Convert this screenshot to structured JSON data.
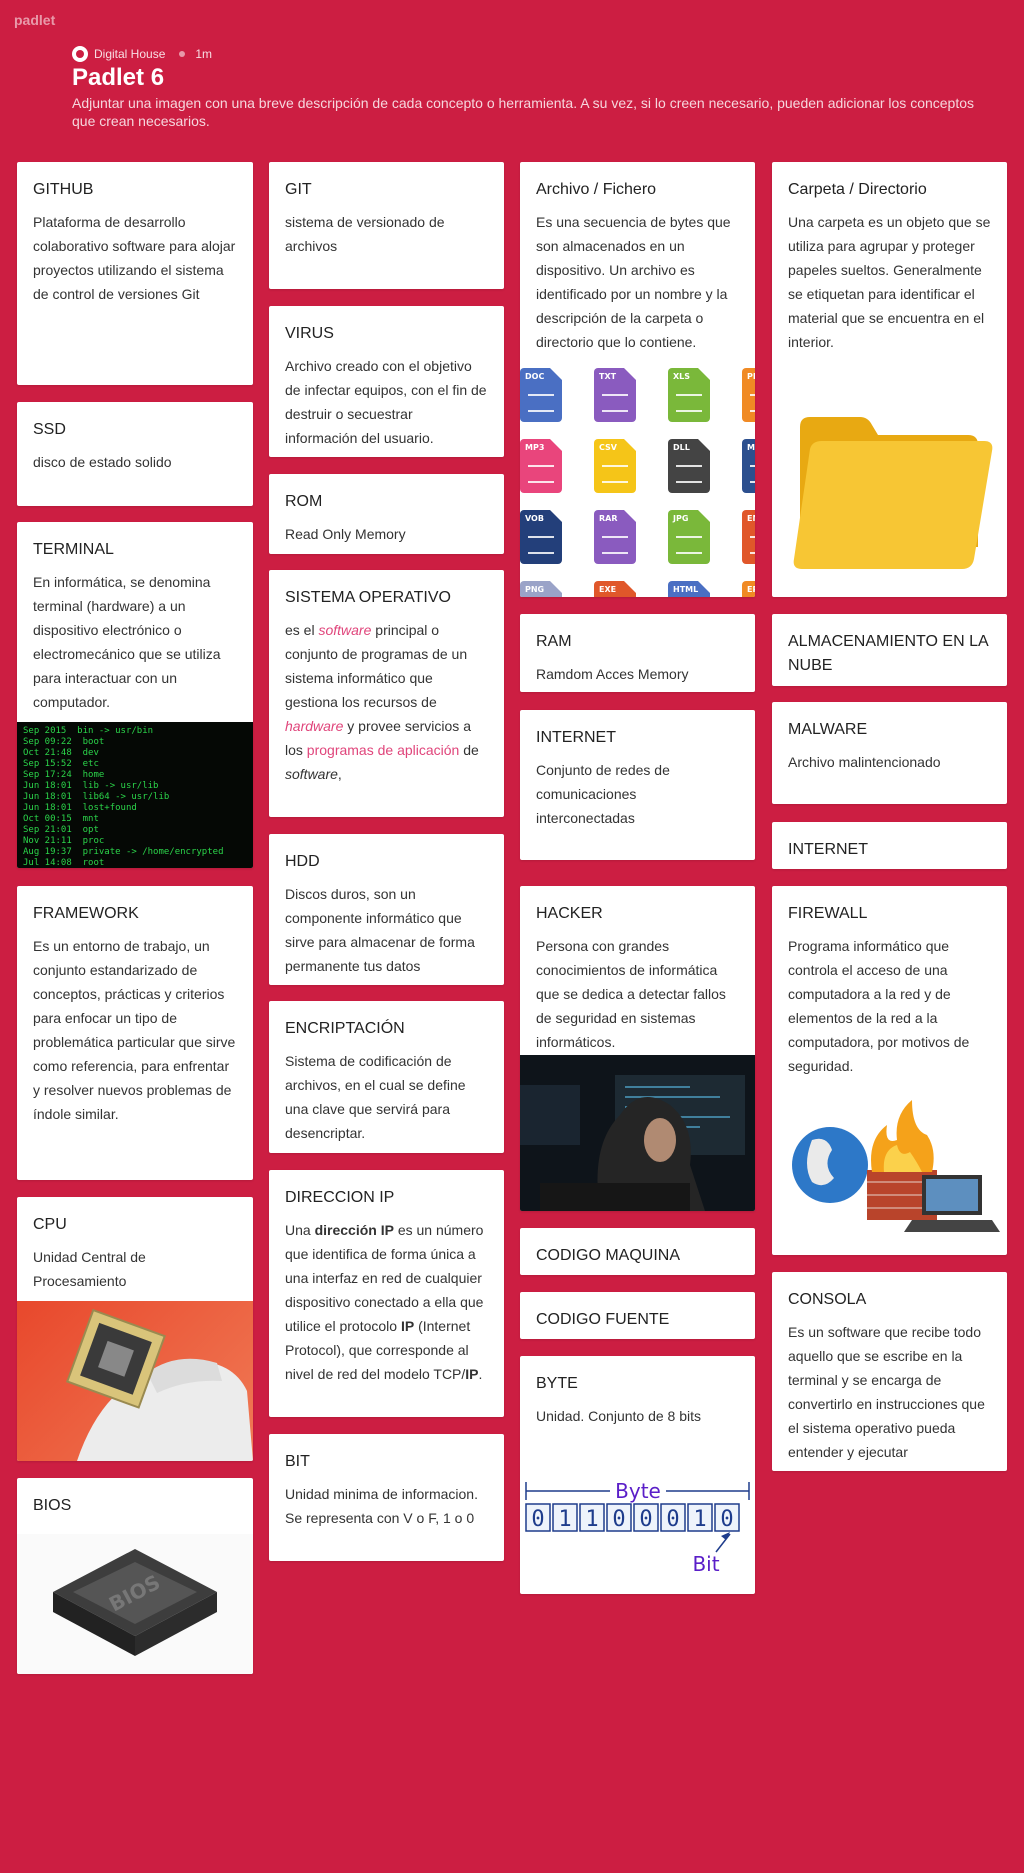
{
  "header": {
    "logo": "padlet",
    "author": "Digital House",
    "time": "1m",
    "title": "Padlet 6",
    "description": "Adjuntar una imagen con una breve descripción de cada concepto o herramienta. A su vez, si lo creen necesario, pueden adicionar los conceptos que crean necesarios."
  },
  "cards": {
    "github": {
      "title": "GITHUB",
      "body": "Plataforma de desarrollo colaborativo software para alojar proyectos utilizando el sistema de control de versiones Git"
    },
    "ssd": {
      "title": "SSD",
      "body": "disco de estado solido"
    },
    "terminal": {
      "title": "TERMINAL",
      "body": "En informática, se denomina terminal (hardware) a un dispositivo electrónico o electromecánico que se utiliza para interactuar con un computador."
    },
    "framework": {
      "title": "FRAMEWORK",
      "body": "Es un entorno de trabajo,  un conjunto estandarizado de conceptos, prácticas y criterios para enfocar un tipo de problemática particular que sirve como referencia, para enfrentar y resolver nuevos problemas de índole similar."
    },
    "cpu": {
      "title": "CPU",
      "body": "Unidad Central de Procesamiento"
    },
    "bios": {
      "title": "BIOS",
      "chip_label": "BIOS"
    },
    "git": {
      "title": "GIT",
      "body": "sistema de versionado de archivos"
    },
    "virus": {
      "title": "VIRUS",
      "body": "Archivo creado con el objetivo de infectar equipos, con el fin de destruir o secuestrar información del usuario."
    },
    "rom": {
      "title": "ROM",
      "body": "Read Only Memory"
    },
    "so": {
      "title": "SISTEMA OPERATIVO",
      "p1": "es el ",
      "software": "software",
      "p2": " principal o conjunto de programas de un sistema informático que gestiona los recursos de ",
      "hardware": "hardware",
      "p3": " y provee servicios a los ",
      "apps": "programas de aplicación",
      "p4": " de ",
      "software2": "software",
      "p5": ","
    },
    "hdd": {
      "title": "HDD",
      "body": "Discos duros, son un componente informático que sirve para almacenar de forma permanente tus datos"
    },
    "encriptacion": {
      "title": "ENCRIPTACIÓN",
      "body": "Sistema de codificación de archivos, en el cual se define una clave que servirá para desencriptar."
    },
    "ip": {
      "title": "DIRECCION IP",
      "p1": "Una ",
      "b1": "dirección IP",
      "p2": " es un número que identifica de forma única a una interfaz en red de cualquier dispositivo conectado a ella que utilice el protocolo ",
      "b2": "IP",
      "p3": " (Internet Protocol), que corresponde al nivel de red del modelo TCP/",
      "b3": "IP",
      "p4": "."
    },
    "bit": {
      "title": "BIT",
      "body": "Unidad minima de informacion. Se representa con V o F, 1 o 0"
    },
    "archivo": {
      "title": "Archivo / Fichero",
      "body": "Es una secuencia de bytes que son almacenados en un dispositivo. Un archivo es identificado por un nombre y la descripción de la carpeta o directorio que lo contiene."
    },
    "ram": {
      "title": "RAM",
      "body": "Ramdom Acces Memory"
    },
    "internet1": {
      "title": "INTERNET",
      "body": "Conjunto de redes de comunicaciones interconectadas"
    },
    "hacker": {
      "title": "HACKER",
      "body": "Persona con grandes conocimientos de informática que se dedica a detectar fallos de seguridad en sistemas informáticos."
    },
    "codigo_maquina": {
      "title": "CODIGO MAQUINA"
    },
    "codigo_fuente": {
      "title": "CODIGO FUENTE"
    },
    "byte": {
      "title": "BYTE",
      "body": "Unidad. Conjunto de 8 bits",
      "diagram_byte": "Byte",
      "diagram_bit": "Bit",
      "bits": [
        "0",
        "1",
        "1",
        "0",
        "0",
        "0",
        "1",
        "0"
      ]
    },
    "carpeta": {
      "title": "Carpeta / Directorio",
      "body": "Una carpeta es un objeto que se utiliza para agrupar y proteger papeles sueltos. Generalmente se etiquetan para identificar el material que se encuentra en el interior."
    },
    "nube": {
      "title": "ALMACENAMIENTO EN LA NUBE"
    },
    "malware": {
      "title": "MALWARE",
      "body": "Archivo malintencionado"
    },
    "internet2": {
      "title": "INTERNET"
    },
    "firewall": {
      "title": "FIREWALL",
      "body": "Programa informático que controla el acceso de una computadora a la red y de elementos de la red a la computadora, por motivos de seguridad."
    },
    "consola": {
      "title": "CONSOLA",
      "body": "Es un software que recibe todo aquello que se escribe en la terminal y se encarga de convertirlo en instrucciones que el sistema operativo pueda entender y ejecutar"
    }
  },
  "file_icons": [
    {
      "label": "DOC",
      "color": "#4a6fc3"
    },
    {
      "label": "TXT",
      "color": "#8a5bbf"
    },
    {
      "label": "XLS",
      "color": "#7ab83a"
    },
    {
      "label": "PPT",
      "color": "#f08a24"
    },
    {
      "label": "MP3",
      "color": "#e9457c"
    },
    {
      "label": "CSV",
      "color": "#f5c518"
    },
    {
      "label": "DLL",
      "color": "#444444"
    },
    {
      "label": "MOV",
      "color": "#2c4f8e"
    },
    {
      "label": "VOB",
      "color": "#233f7a"
    },
    {
      "label": "RAR",
      "color": "#8a5bbf"
    },
    {
      "label": "JPG",
      "color": "#7ab83a"
    },
    {
      "label": "EML",
      "color": "#e0572a"
    },
    {
      "label": "PNG",
      "color": "#9aa3c8"
    },
    {
      "label": "EXE",
      "color": "#e0572a"
    },
    {
      "label": "HTML",
      "color": "#4a6fc3"
    },
    {
      "label": "EPS",
      "color": "#f08a24"
    }
  ],
  "colors": {
    "background": "#cc1e42",
    "accent_link": "#e0457b"
  }
}
